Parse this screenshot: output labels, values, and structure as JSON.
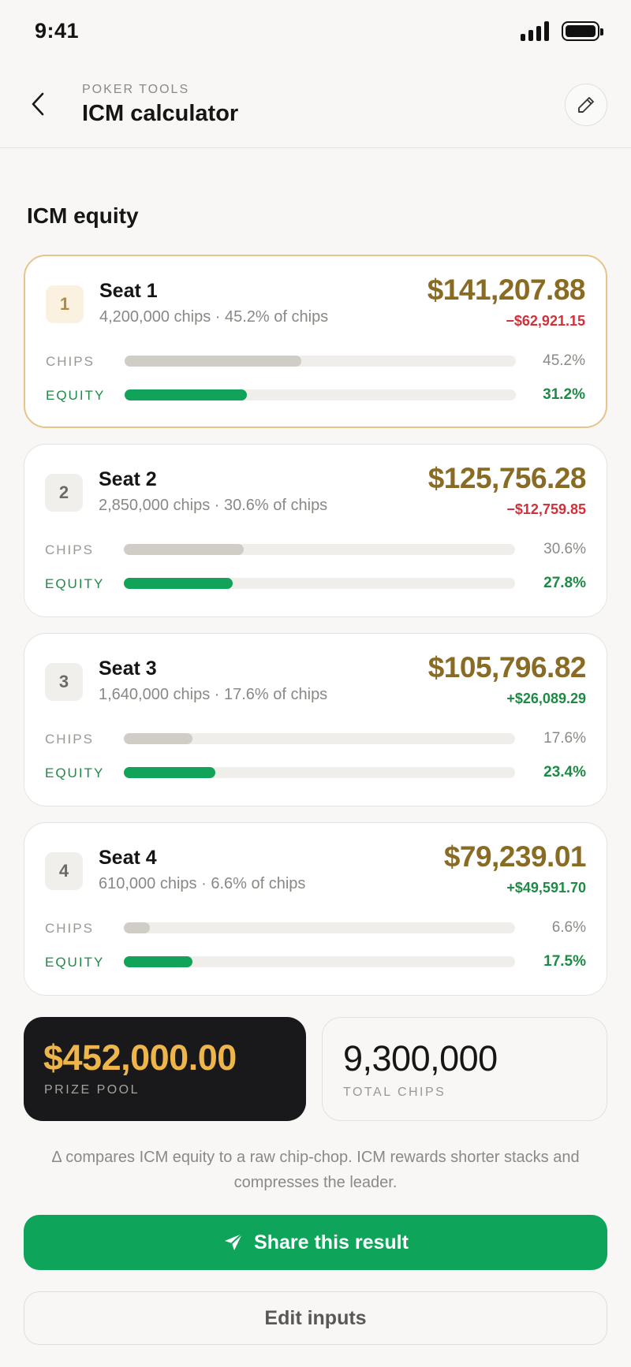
{
  "status": {
    "time": "9:41"
  },
  "header": {
    "eyebrow": "POKER TOOLS",
    "title": "ICM calculator"
  },
  "section_title": "ICM equity",
  "bar_labels": {
    "chips": "CHIPS",
    "equity": "EQUITY"
  },
  "seats": [
    {
      "rank": "1",
      "name": "Seat 1",
      "sub": "4,200,000 chips · 45.2% of chips",
      "equity_value": "$141,207.88",
      "delta": "−$62,921.15",
      "delta_sign": "neg",
      "chips_pct": "45.2%",
      "equity_pct": "31.2%",
      "chips_frac": 0.452,
      "equity_frac": 0.312
    },
    {
      "rank": "2",
      "name": "Seat 2",
      "sub": "2,850,000 chips · 30.6% of chips",
      "equity_value": "$125,756.28",
      "delta": "−$12,759.85",
      "delta_sign": "neg",
      "chips_pct": "30.6%",
      "equity_pct": "27.8%",
      "chips_frac": 0.306,
      "equity_frac": 0.278
    },
    {
      "rank": "3",
      "name": "Seat 3",
      "sub": "1,640,000 chips · 17.6% of chips",
      "equity_value": "$105,796.82",
      "delta": "+$26,089.29",
      "delta_sign": "pos",
      "chips_pct": "17.6%",
      "equity_pct": "23.4%",
      "chips_frac": 0.176,
      "equity_frac": 0.234
    },
    {
      "rank": "4",
      "name": "Seat 4",
      "sub": "610,000 chips · 6.6% of chips",
      "equity_value": "$79,239.01",
      "delta": "+$49,591.70",
      "delta_sign": "pos",
      "chips_pct": "6.6%",
      "equity_pct": "17.5%",
      "chips_frac": 0.066,
      "equity_frac": 0.175
    }
  ],
  "prize_pool": {
    "value": "$452,000.00",
    "label": "PRIZE POOL"
  },
  "total_chips": {
    "value": "9,300,000",
    "label": "TOTAL CHIPS"
  },
  "footnote": "Δ compares ICM equity to a raw chip-chop. ICM rewards shorter stacks and compresses the leader.",
  "actions": {
    "share": "Share this result",
    "edit": "Edit inputs"
  },
  "colors": {
    "accent_green": "#0ea45a",
    "equity_gold": "#8a6b24",
    "negative_red": "#d0313b",
    "prize_gold": "#eeb64a"
  }
}
